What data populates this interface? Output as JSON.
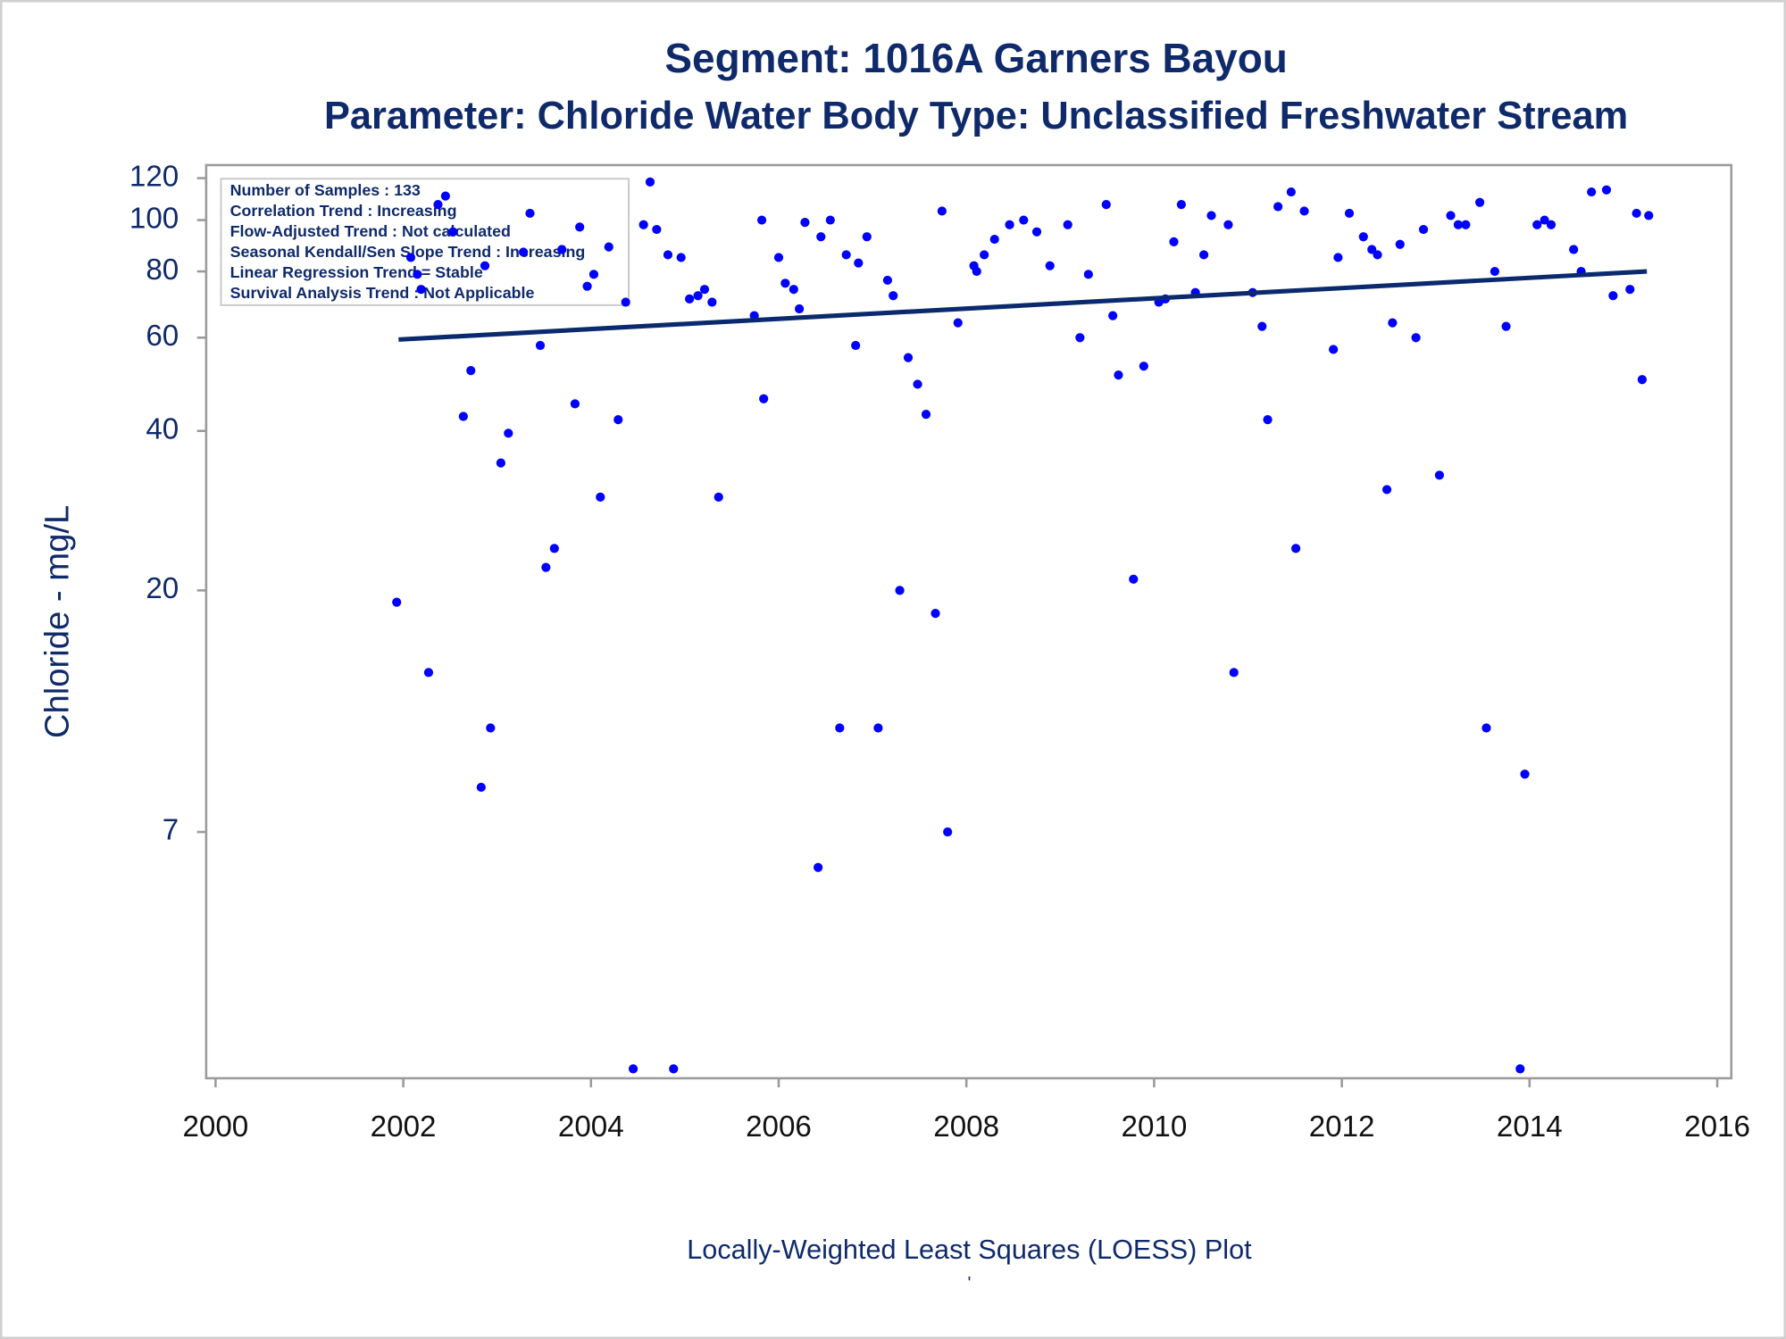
{
  "chart_data": {
    "type": "scatter",
    "title": "Segment: 1016A  Garners Bayou",
    "subtitle": "Parameter: Chloride   Water Body Type: Unclassified Freshwater Stream",
    "y_label": "Chloride - mg/L",
    "footer": "Locally-Weighted Least Squares (LOESS) Plot",
    "footnote": "'",
    "annotations": [
      "Number of Samples : 133",
      "Correlation Trend : Increasing",
      "Flow-Adjusted Trend : Not calculated",
      "Seasonal Kendall/Sen Slope Trend : Increasing",
      "Linear Regression Trend = Stable",
      "Survival Analysis Trend : Not Applicable"
    ],
    "log_y": true,
    "xlim": [
      1999.9,
      2016.15
    ],
    "xticks": [
      2000,
      2002,
      2004,
      2006,
      2008,
      2010,
      2012,
      2014,
      2016
    ],
    "ylim": [
      2.4,
      127
    ],
    "yticks": [
      7,
      20,
      40,
      60,
      80,
      100,
      120
    ],
    "series": [
      {
        "style": "markers",
        "color": "#0000ff",
        "x": [
          2001.93,
          2002.08,
          2002.15,
          2002.19,
          2002.27,
          2002.37,
          2002.45,
          2002.53,
          2002.64,
          2002.72,
          2002.83,
          2002.87,
          2002.93,
          2003.04,
          2003.12,
          2003.28,
          2003.35,
          2003.46,
          2003.52,
          2003.61,
          2003.69,
          2003.83,
          2003.88,
          2003.96,
          2004.03,
          2004.1,
          2004.19,
          2004.29,
          2004.37,
          2004.45,
          2004.56,
          2004.63,
          2004.7,
          2004.82,
          2004.88,
          2004.96,
          2005.05,
          2005.14,
          2005.21,
          2005.29,
          2005.36,
          2005.74,
          2005.82,
          2005.84,
          2006.0,
          2006.07,
          2006.16,
          2006.22,
          2006.28,
          2006.42,
          2006.45,
          2006.55,
          2006.65,
          2006.72,
          2006.82,
          2006.85,
          2006.94,
          2007.06,
          2007.16,
          2007.22,
          2007.29,
          2007.38,
          2007.48,
          2007.57,
          2007.67,
          2007.74,
          2007.8,
          2007.91,
          2008.08,
          2008.11,
          2008.19,
          2008.3,
          2008.46,
          2008.61,
          2008.75,
          2008.89,
          2009.08,
          2009.21,
          2009.3,
          2009.49,
          2009.56,
          2009.62,
          2009.78,
          2009.89,
          2010.05,
          2010.12,
          2010.21,
          2010.29,
          2010.44,
          2010.53,
          2010.61,
          2010.79,
          2010.85,
          2011.05,
          2011.15,
          2011.21,
          2011.32,
          2011.46,
          2011.51,
          2011.6,
          2011.91,
          2011.96,
          2012.08,
          2012.23,
          2012.32,
          2012.38,
          2012.48,
          2012.54,
          2012.62,
          2012.79,
          2012.87,
          2013.04,
          2013.16,
          2013.24,
          2013.32,
          2013.47,
          2013.54,
          2013.63,
          2013.75,
          2013.9,
          2013.95,
          2014.08,
          2014.16,
          2014.23,
          2014.47,
          2014.55,
          2014.66,
          2014.82,
          2014.89,
          2015.07,
          2015.14,
          2015.2,
          2015.27
        ],
        "values": [
          19,
          85,
          79,
          74,
          14,
          107,
          111,
          95,
          42.6,
          52,
          8.5,
          82,
          11,
          34.8,
          39.6,
          87,
          103,
          58,
          22.1,
          24,
          88,
          45,
          97,
          75,
          79,
          30,
          89,
          42,
          70,
          2.5,
          98,
          118,
          96,
          86,
          2.5,
          85,
          71,
          72,
          74,
          70,
          30,
          66,
          100,
          46,
          85,
          76,
          74,
          68,
          99,
          6,
          93,
          100,
          11,
          86,
          58,
          83,
          93,
          11,
          77,
          72,
          20,
          55,
          49,
          43,
          18.1,
          104,
          7,
          64,
          82,
          80,
          86,
          92,
          98,
          100,
          95,
          82,
          98,
          60,
          79,
          107,
          66,
          51,
          21,
          53,
          70,
          71,
          91,
          107,
          73,
          86,
          102,
          98,
          14,
          73,
          63,
          42,
          106,
          113,
          24,
          104,
          57,
          85,
          103,
          93,
          88,
          86,
          31,
          64,
          90,
          60,
          96,
          33,
          102,
          98,
          98,
          108,
          11,
          80,
          63,
          2.5,
          9,
          98,
          100,
          98,
          88,
          80,
          113,
          114,
          72,
          74,
          103,
          50,
          102
        ]
      },
      {
        "style": "line",
        "color": "#0b2a6e",
        "x": [
          2001.95,
          2015.25
        ],
        "values": [
          59.5,
          80
        ]
      }
    ]
  }
}
